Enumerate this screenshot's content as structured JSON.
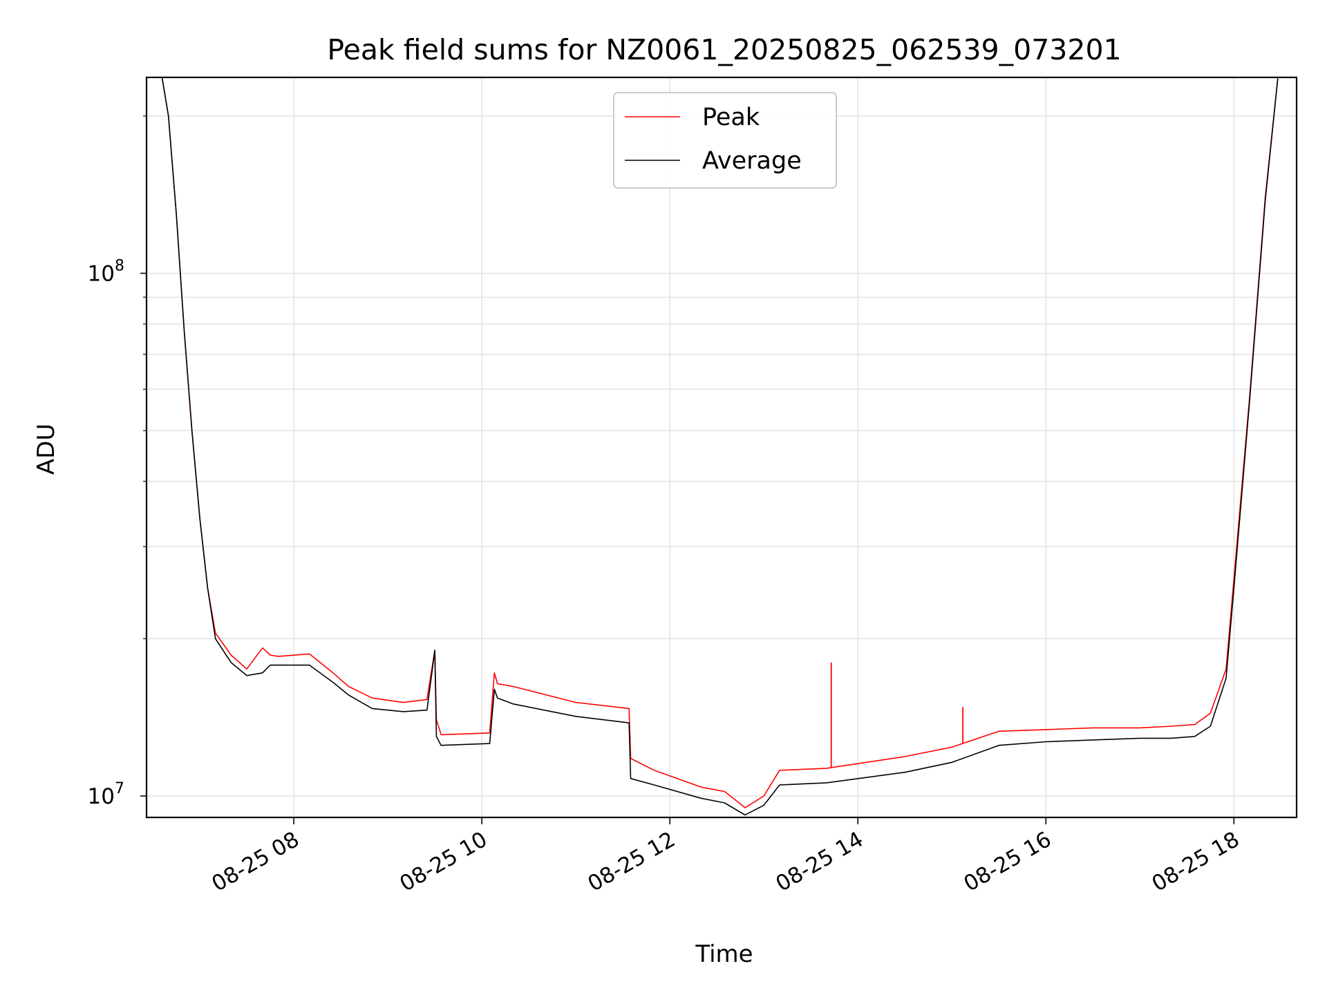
{
  "chart_data": {
    "type": "line",
    "title": "Peak field sums for NZ0061_20250825_062539_073201",
    "xlabel": "Time",
    "ylabel": "ADU",
    "yscale": "log",
    "xlim": [
      "2025-08-25 06:26",
      "2025-08-25 18:40"
    ],
    "ylim": [
      9100000,
      237000000
    ],
    "x_ticks": [
      "2025-08-25 08:00",
      "2025-08-25 10:00",
      "2025-08-25 12:00",
      "2025-08-25 14:00",
      "2025-08-25 16:00",
      "2025-08-25 18:00"
    ],
    "x_tick_labels": [
      "08-25 08",
      "08-25 10",
      "08-25 12",
      "08-25 14",
      "08-25 16",
      "08-25 18"
    ],
    "y_ticks": [
      10000000,
      100000000
    ],
    "y_tick_labels": [
      {
        "base": "10",
        "exp": "7"
      },
      {
        "base": "10",
        "exp": "8"
      }
    ],
    "grid": true,
    "legend": "top-center",
    "series": [
      {
        "name": "Peak",
        "color": "#ff0000",
        "x": [
          "2025-08-25 06:36",
          "2025-08-25 06:40",
          "2025-08-25 06:45",
          "2025-08-25 06:50",
          "2025-08-25 06:55",
          "2025-08-25 07:00",
          "2025-08-25 07:05",
          "2025-08-25 07:10",
          "2025-08-25 07:20",
          "2025-08-25 07:30",
          "2025-08-25 07:40",
          "2025-08-25 07:45",
          "2025-08-25 07:50",
          "2025-08-25 08:10",
          "2025-08-25 08:25",
          "2025-08-25 08:35",
          "2025-08-25 08:50",
          "2025-08-25 09:10",
          "2025-08-25 09:25",
          "2025-08-25 09:30",
          "2025-08-25 09:31",
          "2025-08-25 09:34",
          "2025-08-25 10:05",
          "2025-08-25 10:08",
          "2025-08-25 10:10",
          "2025-08-25 10:20",
          "2025-08-25 11:00",
          "2025-08-25 11:34",
          "2025-08-25 11:35",
          "2025-08-25 11:50",
          "2025-08-25 12:20",
          "2025-08-25 12:35",
          "2025-08-25 12:48",
          "2025-08-25 13:00",
          "2025-08-25 13:10",
          "2025-08-25 13:40",
          "2025-08-25 14:30",
          "2025-08-25 15:00",
          "2025-08-25 15:30",
          "2025-08-25 16:00",
          "2025-08-25 16:30",
          "2025-08-25 17:00",
          "2025-08-25 17:20",
          "2025-08-25 17:35",
          "2025-08-25 17:45",
          "2025-08-25 17:55",
          "2025-08-25 18:00",
          "2025-08-25 18:10",
          "2025-08-25 18:20",
          "2025-08-25 18:28"
        ],
        "values": [
          236000000,
          200000000,
          130000000,
          78000000,
          50000000,
          34000000,
          25000000,
          20500000,
          18600000,
          17500000,
          19200000,
          18600000,
          18500000,
          18700000,
          17200000,
          16200000,
          15400000,
          15100000,
          15300000,
          19000000,
          14000000,
          13100000,
          13200000,
          17200000,
          16400000,
          16200000,
          15100000,
          14700000,
          11800000,
          11200000,
          10400000,
          10200000,
          9500000,
          10000000,
          11200000,
          11300000,
          11900000,
          12400000,
          13300000,
          13400000,
          13500000,
          13500000,
          13600000,
          13700000,
          14400000,
          17500000,
          26000000,
          58000000,
          140000000,
          236000000
        ]
      },
      {
        "name": "Average",
        "color": "#000000",
        "x": [
          "2025-08-25 06:36",
          "2025-08-25 06:40",
          "2025-08-25 06:45",
          "2025-08-25 06:50",
          "2025-08-25 06:55",
          "2025-08-25 07:00",
          "2025-08-25 07:05",
          "2025-08-25 07:10",
          "2025-08-25 07:20",
          "2025-08-25 07:30",
          "2025-08-25 07:40",
          "2025-08-25 07:45",
          "2025-08-25 07:50",
          "2025-08-25 08:10",
          "2025-08-25 08:25",
          "2025-08-25 08:35",
          "2025-08-25 08:50",
          "2025-08-25 09:10",
          "2025-08-25 09:25",
          "2025-08-25 09:30",
          "2025-08-25 09:31",
          "2025-08-25 09:34",
          "2025-08-25 10:05",
          "2025-08-25 10:08",
          "2025-08-25 10:10",
          "2025-08-25 10:20",
          "2025-08-25 11:00",
          "2025-08-25 11:34",
          "2025-08-25 11:35",
          "2025-08-25 11:50",
          "2025-08-25 12:20",
          "2025-08-25 12:35",
          "2025-08-25 12:48",
          "2025-08-25 13:00",
          "2025-08-25 13:10",
          "2025-08-25 13:40",
          "2025-08-25 14:30",
          "2025-08-25 15:00",
          "2025-08-25 15:30",
          "2025-08-25 16:00",
          "2025-08-25 16:30",
          "2025-08-25 17:00",
          "2025-08-25 17:20",
          "2025-08-25 17:35",
          "2025-08-25 17:45",
          "2025-08-25 17:55",
          "2025-08-25 18:00",
          "2025-08-25 18:10",
          "2025-08-25 18:20",
          "2025-08-25 18:28"
        ],
        "values": [
          236000000,
          200000000,
          130000000,
          78000000,
          50000000,
          34000000,
          25000000,
          20000000,
          18000000,
          17000000,
          17200000,
          17800000,
          17800000,
          17800000,
          16500000,
          15600000,
          14700000,
          14500000,
          14600000,
          19000000,
          13000000,
          12500000,
          12600000,
          16000000,
          15400000,
          15000000,
          14200000,
          13800000,
          10800000,
          10500000,
          9900000,
          9700000,
          9200000,
          9600000,
          10500000,
          10600000,
          11100000,
          11600000,
          12500000,
          12700000,
          12800000,
          12900000,
          12900000,
          13000000,
          13600000,
          16800000,
          25000000,
          57000000,
          138000000,
          236000000
        ]
      }
    ],
    "annotations": [
      {
        "series": "Peak",
        "x": "2025-08-25 13:43",
        "value": 18000000,
        "kind": "spike"
      },
      {
        "series": "Peak",
        "x": "2025-08-25 15:07",
        "value": 14800000,
        "kind": "spike"
      }
    ]
  }
}
